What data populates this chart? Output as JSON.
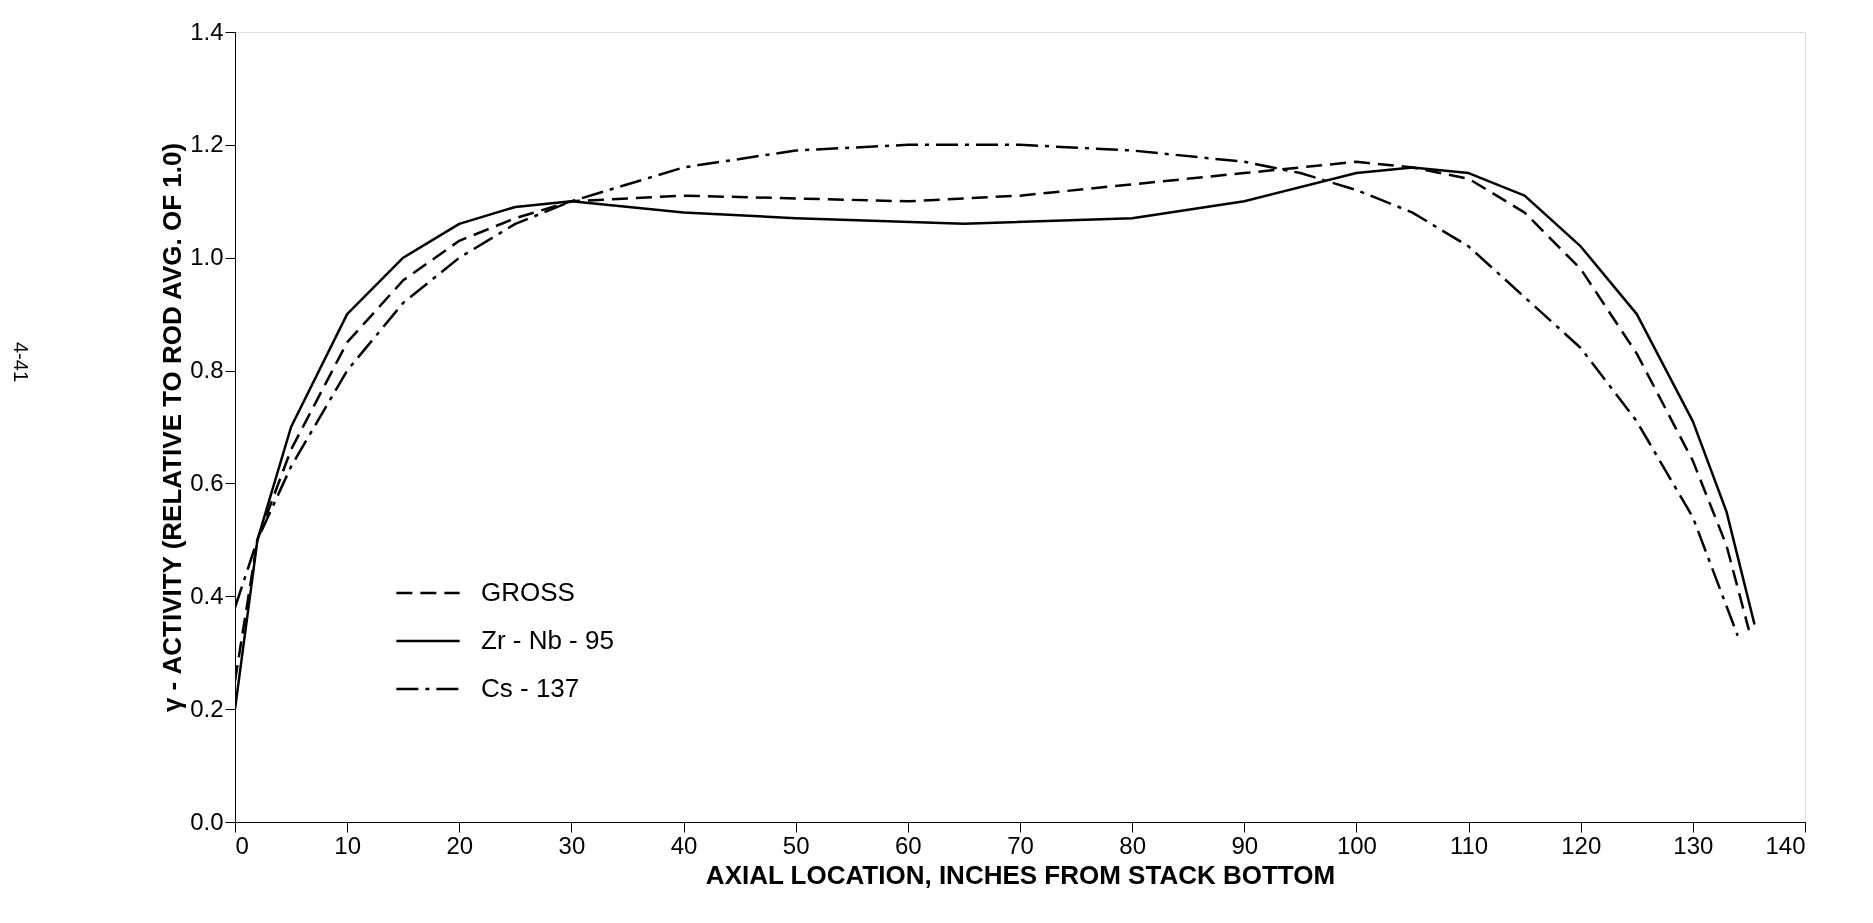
{
  "chart_data": {
    "type": "line",
    "xlabel": "AXIAL LOCATION, INCHES FROM STACK BOTTOM",
    "ylabel": "γ - ACTIVITY (RELATIVE TO ROD AVG. OF 1.0)",
    "xlim": [
      0,
      140
    ],
    "xticks": [
      0,
      10,
      20,
      30,
      40,
      50,
      60,
      70,
      80,
      90,
      100,
      110,
      120,
      130,
      140
    ],
    "ylim": [
      0,
      1.4
    ],
    "yticks": [
      {
        "value": 0,
        "label": "0.0"
      },
      0.2,
      0.4,
      0.6,
      0.8,
      {
        "value": 1,
        "label": "1.0"
      },
      1.2,
      1.4
    ],
    "grid": false,
    "legend": "bottom left",
    "marker": "none",
    "annotations": [
      "4-41"
    ],
    "series": [
      {
        "name": "GROSS",
        "color": "#000000",
        "line_style": "dashed",
        "x": [
          0,
          2,
          5,
          10,
          15,
          20,
          25,
          30,
          40,
          50,
          60,
          70,
          80,
          90,
          95,
          100,
          105,
          110,
          115,
          120,
          125,
          130,
          133,
          135
        ],
        "values": [
          0.25,
          0.5,
          0.66,
          0.85,
          0.96,
          1.03,
          1.07,
          1.1,
          1.11,
          1.105,
          1.1,
          1.11,
          1.13,
          1.15,
          1.16,
          1.17,
          1.16,
          1.14,
          1.08,
          0.98,
          0.83,
          0.64,
          0.49,
          0.34
        ]
      },
      {
        "name": "Zr - Nb - 95",
        "color": "#000000",
        "line_style": "solid",
        "x": [
          0,
          2,
          5,
          10,
          15,
          20,
          25,
          30,
          40,
          50,
          65,
          80,
          90,
          100,
          105,
          110,
          115,
          120,
          125,
          130,
          133,
          135.5
        ],
        "values": [
          0.2,
          0.5,
          0.7,
          0.9,
          1.0,
          1.06,
          1.09,
          1.1,
          1.08,
          1.07,
          1.06,
          1.07,
          1.1,
          1.15,
          1.16,
          1.15,
          1.11,
          1.02,
          0.9,
          0.71,
          0.55,
          0.35
        ]
      },
      {
        "name": "Cs - 137",
        "color": "#000000",
        "line_style": "dashdot",
        "x": [
          0,
          2,
          5,
          10,
          15,
          20,
          25,
          30,
          40,
          50,
          60,
          70,
          80,
          90,
          95,
          100,
          105,
          110,
          115,
          120,
          125,
          130,
          134
        ],
        "values": [
          0.38,
          0.5,
          0.63,
          0.8,
          0.92,
          1.0,
          1.06,
          1.1,
          1.16,
          1.19,
          1.2,
          1.2,
          1.19,
          1.17,
          1.15,
          1.12,
          1.08,
          1.02,
          0.93,
          0.84,
          0.71,
          0.54,
          0.33
        ]
      }
    ]
  }
}
